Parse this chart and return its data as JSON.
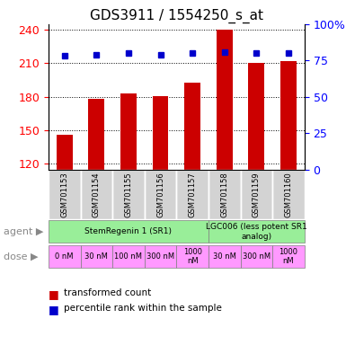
{
  "title": "GDS3911 / 1554250_s_at",
  "samples": [
    "GSM701153",
    "GSM701154",
    "GSM701155",
    "GSM701156",
    "GSM701157",
    "GSM701158",
    "GSM701159",
    "GSM701160"
  ],
  "bar_values": [
    146,
    178,
    183,
    181,
    193,
    240,
    210,
    212
  ],
  "percentile_values": [
    78,
    79,
    80,
    79,
    80,
    81,
    80,
    80
  ],
  "ylim_left": [
    115,
    245
  ],
  "ylim_right": [
    0,
    100
  ],
  "yticks_left": [
    120,
    150,
    180,
    210,
    240
  ],
  "yticks_right": [
    0,
    25,
    50,
    75,
    100
  ],
  "ytick_labels_right": [
    "0",
    "25",
    "50",
    "75",
    "100%"
  ],
  "bar_color": "#cc0000",
  "dot_color": "#0000cc",
  "agents": [
    {
      "label": "StemRegenin 1 (SR1)",
      "start": 0,
      "end": 5,
      "color": "#99ee99"
    },
    {
      "label": "LGC006 (less potent SR1\nanalog)",
      "start": 5,
      "end": 8,
      "color": "#99ee99"
    }
  ],
  "dose_row": [
    {
      "label": "0 nM",
      "start": 0,
      "end": 1,
      "color": "#ff99ff"
    },
    {
      "label": "30 nM",
      "start": 1,
      "end": 2,
      "color": "#ff99ff"
    },
    {
      "label": "100 nM",
      "start": 2,
      "end": 3,
      "color": "#ff99ff"
    },
    {
      "label": "300 nM",
      "start": 3,
      "end": 4,
      "color": "#ff99ff"
    },
    {
      "label": "1000\nnM",
      "start": 4,
      "end": 5,
      "color": "#ff99ff"
    },
    {
      "label": "30 nM",
      "start": 5,
      "end": 6,
      "color": "#ff99ff"
    },
    {
      "label": "300 nM",
      "start": 6,
      "end": 7,
      "color": "#ff99ff"
    },
    {
      "label": "1000\nnM",
      "start": 7,
      "end": 8,
      "color": "#ff99ff"
    }
  ],
  "legend_items": [
    {
      "label": "transformed count",
      "color": "#cc0000"
    },
    {
      "label": "percentile rank within the sample",
      "color": "#0000cc"
    }
  ],
  "sample_bg": "#d3d3d3",
  "left_label_color": "#888888"
}
